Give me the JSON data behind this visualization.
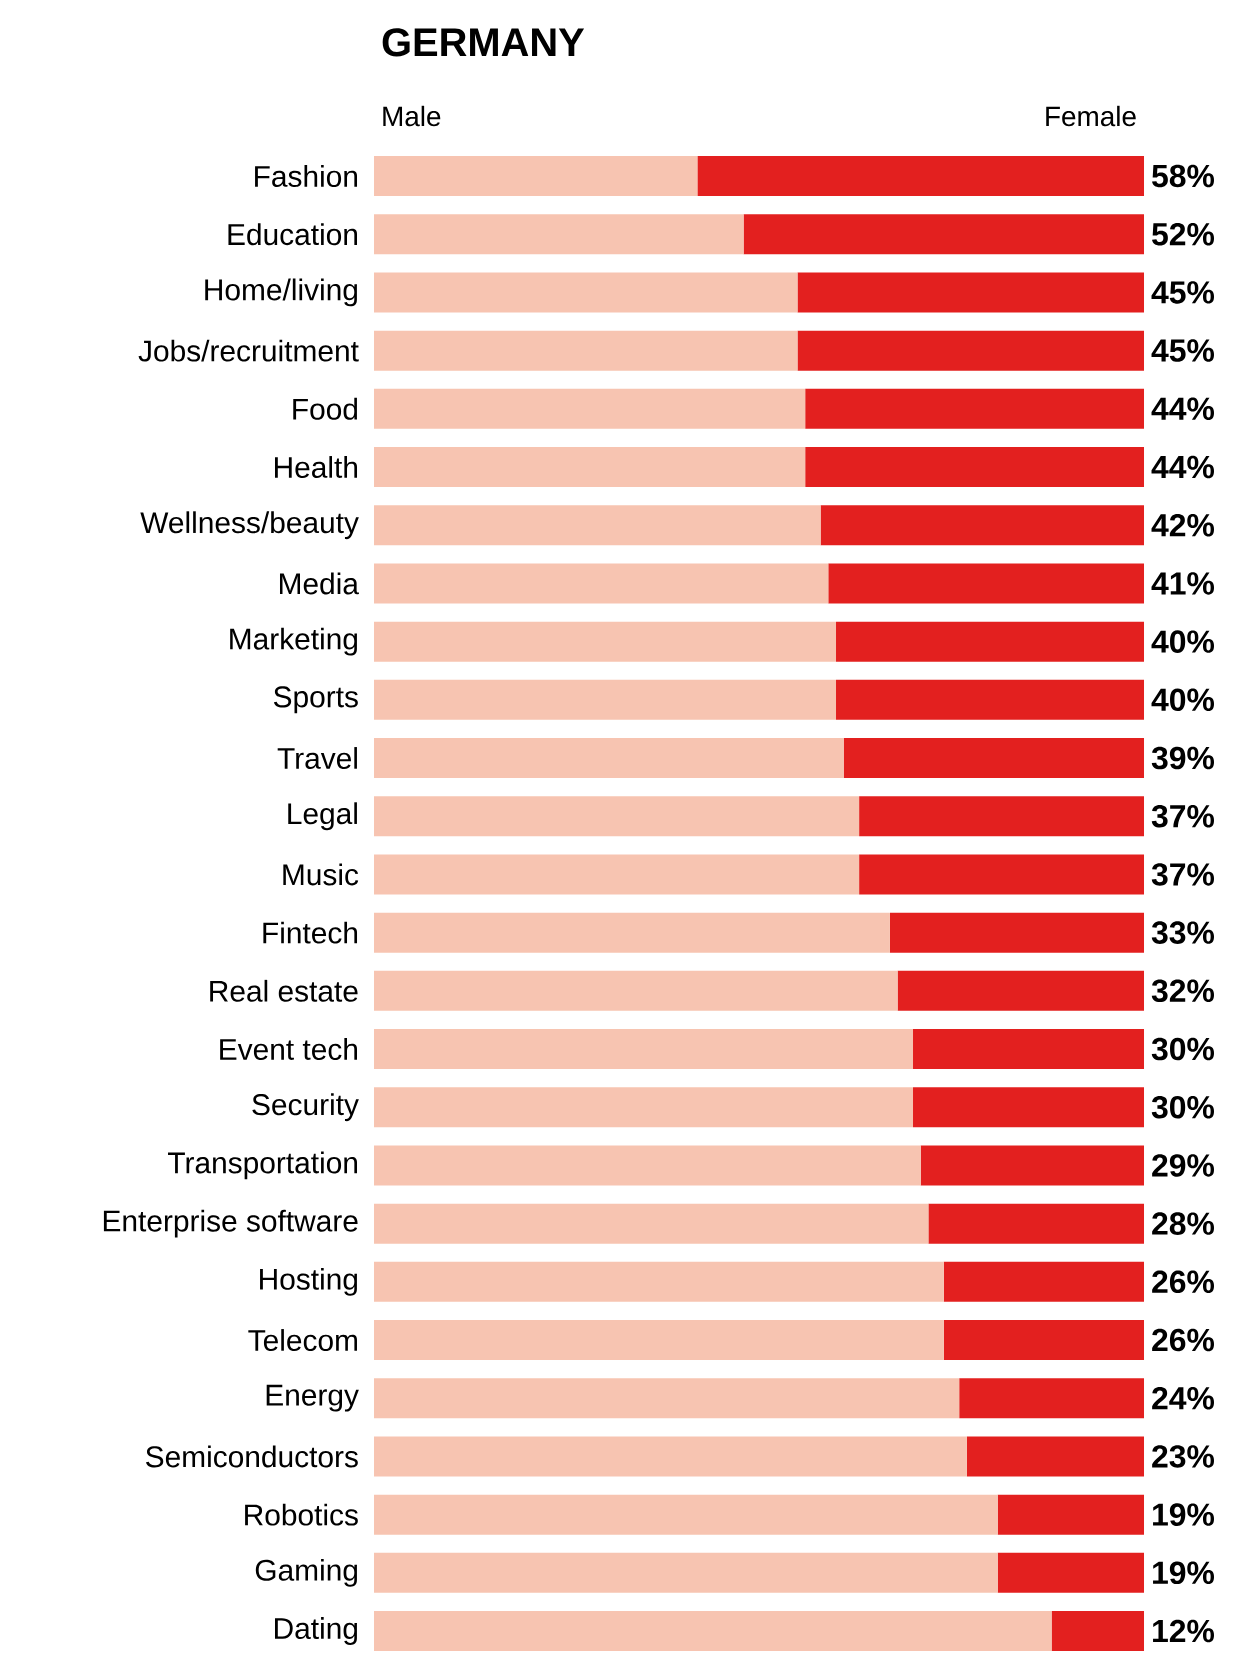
{
  "chart_data": {
    "type": "bar",
    "orientation": "horizontal",
    "stacked": true,
    "title": "GERMANY",
    "legend": "top",
    "categories": [
      "Fashion",
      "Education",
      "Home/living",
      "Jobs/recruitment",
      "Food",
      "Health",
      "Wellness/beauty",
      "Media",
      "Marketing",
      "Sports",
      "Travel",
      "Legal",
      "Music",
      "Fintech",
      "Real estate",
      "Event tech",
      "Security",
      "Transportation",
      "Enterprise software",
      "Hosting",
      "Telecom",
      "Energy",
      "Semiconductors",
      "Robotics",
      "Gaming",
      "Dating"
    ],
    "series": [
      {
        "name": "Male",
        "color": "#f7c4b1",
        "values": [
          42,
          48,
          55,
          55,
          56,
          56,
          58,
          59,
          60,
          60,
          61,
          63,
          63,
          67,
          68,
          70,
          70,
          71,
          72,
          74,
          74,
          76,
          77,
          81,
          81,
          88
        ]
      },
      {
        "name": "Female",
        "color": "#e3201f",
        "values": [
          58,
          52,
          45,
          45,
          44,
          44,
          42,
          41,
          40,
          40,
          39,
          37,
          37,
          33,
          32,
          30,
          30,
          29,
          28,
          26,
          26,
          24,
          23,
          19,
          19,
          12
        ],
        "value_labels": [
          "58%",
          "52%",
          "45%",
          "45%",
          "44%",
          "44%",
          "42%",
          "41%",
          "40%",
          "40%",
          "39%",
          "37%",
          "37%",
          "33%",
          "32%",
          "30%",
          "30%",
          "29%",
          "28%",
          "26%",
          "26%",
          "24%",
          "23%",
          "19%",
          "19%",
          "12%"
        ]
      }
    ]
  }
}
